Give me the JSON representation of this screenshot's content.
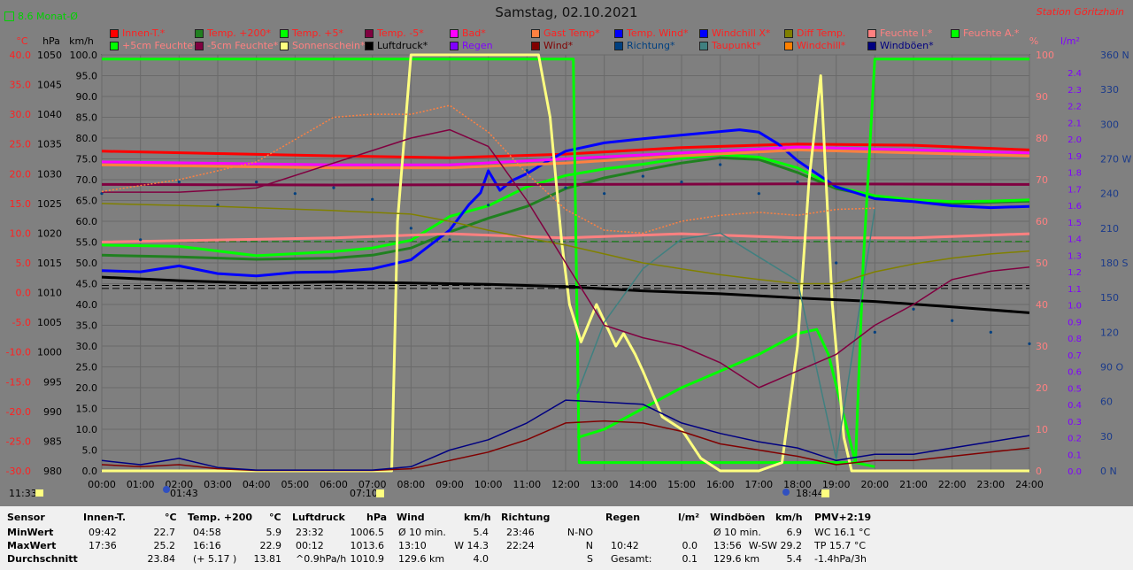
{
  "header": {
    "title": "Samstag, 02.10.2021",
    "station": "Station Göritzhain",
    "monat": "8.6 Monat-Ø"
  },
  "legend": [
    {
      "label": "Innen-T.*",
      "color": "#ff0000",
      "text": "#ff2020"
    },
    {
      "label": "Temp. +200*",
      "color": "#208020",
      "text": "#ff2020"
    },
    {
      "label": "Temp. +5*",
      "color": "#00ff00",
      "text": "#ff2020"
    },
    {
      "label": "Temp. -5*",
      "color": "#800040",
      "text": "#ff2020"
    },
    {
      "label": "Bad*",
      "color": "#ff00ff",
      "text": "#ff2020"
    },
    {
      "label": "Gast Temp*",
      "color": "#ff8040",
      "text": "#ff2020"
    },
    {
      "label": "Temp. Wind*",
      "color": "#0000ff",
      "text": "#ff2020"
    },
    {
      "label": "Windchill X*",
      "color": "#0000ff",
      "text": "#ff2020"
    },
    {
      "label": "Diff Temp.",
      "color": "#808000",
      "text": "#ff2020"
    },
    {
      "label": "Feuchte I.*",
      "color": "#ff8080",
      "text": "#ff8080"
    },
    {
      "label": "Feuchte A.*",
      "color": "#00ff00",
      "text": "#ff8080"
    },
    {
      "label": "+5cm Feuchte*",
      "color": "#00ff00",
      "text": "#ff8080"
    },
    {
      "label": "-5cm Feuchte*",
      "color": "#800040",
      "text": "#ff8080"
    },
    {
      "label": "Sonnenschein*",
      "color": "#ffff80",
      "text": "#ff8080"
    },
    {
      "label": "Luftdruck*",
      "color": "#000000",
      "text": "#000000"
    },
    {
      "label": "Regen",
      "color": "#8000ff",
      "text": "#8000ff"
    },
    {
      "label": "Wind*",
      "color": "#800000",
      "text": "#800000"
    },
    {
      "label": "Richtung*",
      "color": "#004080",
      "text": "#004080"
    },
    {
      "label": "Taupunkt*",
      "color": "#408080",
      "text": "#ff2020"
    },
    {
      "label": "Windchill*",
      "color": "#ff8000",
      "text": "#ff2020"
    },
    {
      "label": "Windböen*",
      "color": "#000080",
      "text": "#000080"
    }
  ],
  "axes": {
    "unit_temp": "°C",
    "unit_hpa": "hPa",
    "unit_kmh": "km/h",
    "unit_pct": "%",
    "unit_rain": "l/m²",
    "temp_ticks": [
      "40.0",
      "35.0",
      "30.0",
      "25.0",
      "20.0",
      "15.0",
      "10.0",
      "5.0",
      "0.0",
      "-5.0",
      "-10.0",
      "-15.0",
      "-20.0",
      "-25.0",
      "-30.0"
    ],
    "hpa_ticks": [
      "1050",
      "1045",
      "1040",
      "1035",
      "1030",
      "1025",
      "1020",
      "1015",
      "1010",
      "1005",
      "1000",
      "995",
      "990",
      "985",
      "980"
    ],
    "kmh_ticks": [
      "100.0",
      "95.0",
      "90.0",
      "85.0",
      "80.0",
      "75.0",
      "70.0",
      "65.0",
      "60.0",
      "55.0",
      "50.0",
      "45.0",
      "40.0",
      "35.0",
      "30.0",
      "25.0",
      "20.0",
      "15.0",
      "10.0",
      "5.0",
      "0.0"
    ],
    "pct_ticks": [
      "100",
      "90",
      "80",
      "70",
      "60",
      "50",
      "40",
      "30",
      "20",
      "10",
      "0"
    ],
    "rain_ticks": [
      "2.4",
      "2.3",
      "2.2",
      "2.1",
      "2.0",
      "1.9",
      "1.8",
      "1.7",
      "1.6",
      "1.5",
      "1.4",
      "1.3",
      "1.2",
      "1.1",
      "1.0",
      "0.9",
      "0.8",
      "0.7",
      "0.6",
      "0.5",
      "0.4",
      "0.3",
      "0.2",
      "0.1",
      "0.0"
    ],
    "dir_ticks": [
      "360 N",
      "330",
      "300",
      "270 W",
      "240",
      "210",
      "180 S",
      "150",
      "120",
      "90 O",
      "60",
      "30",
      "0   N"
    ],
    "time_ticks": [
      "00:00",
      "01:00",
      "02:00",
      "03:00",
      "04:00",
      "05:00",
      "06:00",
      "07:00",
      "08:00",
      "09:00",
      "10:00",
      "11:00",
      "12:00",
      "13:00",
      "14:00",
      "15:00",
      "16:00",
      "17:00",
      "18:00",
      "19:00",
      "20:00",
      "21:00",
      "22:00",
      "23:00",
      "24:00"
    ],
    "markers": {
      "moon_rise": "11:33",
      "moon_set": "01:43",
      "sunrise": "07:10",
      "sunset": "18:44"
    }
  },
  "chart_data": {
    "type": "line",
    "x_unit": "hours",
    "xlim": [
      0,
      24
    ],
    "series": [
      {
        "name": "Innen-T.*",
        "axis": "temp",
        "color": "#ff0000",
        "x": [
          0,
          3,
          6,
          9,
          12,
          15,
          18,
          21,
          24
        ],
        "y": [
          23.8,
          23.4,
          23.0,
          22.7,
          23.3,
          24.4,
          25.0,
          24.8,
          24.0
        ]
      },
      {
        "name": "Temp. +200*",
        "axis": "temp",
        "color": "#208020",
        "x": [
          0,
          2,
          4,
          6,
          7,
          8,
          9,
          10,
          11,
          12,
          13,
          14,
          15,
          16,
          17,
          18,
          19,
          20,
          21,
          22,
          23,
          24
        ],
        "y": [
          6.3,
          6.0,
          5.6,
          5.8,
          6.3,
          7.5,
          10.2,
          12.5,
          14.5,
          17.5,
          19.3,
          20.6,
          21.8,
          22.7,
          22.4,
          20.2,
          17.5,
          16.2,
          15.4,
          15.0,
          15.2,
          15.4
        ]
      },
      {
        "name": "Temp. +5*",
        "axis": "temp",
        "color": "#00ff00",
        "x": [
          0,
          2,
          3,
          4,
          6,
          7,
          8,
          9,
          10,
          11,
          12,
          13,
          14,
          15,
          16,
          17,
          18,
          19,
          20,
          21,
          22,
          23,
          24
        ],
        "y": [
          8.0,
          7.8,
          7.0,
          6.2,
          6.9,
          7.5,
          8.8,
          12.8,
          14.6,
          17.8,
          19.7,
          20.8,
          21.6,
          22.6,
          23.2,
          22.8,
          21.0,
          17.8,
          16.3,
          15.6,
          15.3,
          15.4,
          15.6
        ]
      },
      {
        "name": "Temp. Wind*",
        "axis": "temp",
        "color": "#0000ff",
        "x": [
          0,
          1,
          2,
          3,
          4,
          5,
          6,
          7,
          8,
          9,
          9.5,
          9.8,
          10,
          10.3,
          10.6,
          11,
          11.5,
          12,
          13,
          14,
          15,
          16,
          16.5,
          17,
          17.5,
          18,
          19,
          20,
          21,
          22,
          23,
          24
        ],
        "y": [
          3.7,
          3.5,
          4.5,
          3.2,
          2.8,
          3.4,
          3.5,
          4.0,
          5.5,
          10.5,
          14.8,
          16.8,
          20.5,
          17.2,
          18.8,
          20.0,
          22.0,
          23.8,
          25.2,
          25.9,
          26.5,
          27.1,
          27.4,
          27.0,
          25.0,
          22.2,
          17.8,
          15.8,
          15.3,
          14.6,
          14.3,
          14.5
        ]
      },
      {
        "name": "Bad*",
        "axis": "temp",
        "color": "#ff00ff",
        "x": [
          0,
          6,
          9,
          12,
          15,
          18,
          21,
          24
        ],
        "y": [
          22.0,
          21.5,
          21.5,
          22.5,
          23.5,
          24.5,
          24.0,
          23.5
        ]
      },
      {
        "name": "Gast Temp*",
        "axis": "temp",
        "color": "#ff8040",
        "x": [
          0,
          6,
          9,
          12,
          15,
          18,
          21,
          24
        ],
        "y": [
          21.5,
          21.0,
          21.0,
          21.8,
          23.0,
          24.0,
          23.5,
          23.0
        ]
      },
      {
        "name": "Temp. -5*",
        "axis": "temp",
        "color": "#800040",
        "x": [
          0,
          6,
          12,
          18,
          24
        ],
        "y": [
          18.2,
          18.1,
          18.2,
          18.3,
          18.2
        ]
      },
      {
        "name": "Feuchte I.*",
        "axis": "pct",
        "color": "#ff8080",
        "x": [
          0,
          6,
          9,
          12,
          15,
          18,
          21,
          24
        ],
        "y": [
          55,
          56,
          57,
          56,
          57,
          56,
          56,
          57
        ]
      },
      {
        "name": "Feuchte A.*",
        "axis": "pct",
        "color": "#00ff00",
        "x": [
          0,
          12.2,
          12.35,
          19.5,
          19.7,
          20,
          24
        ],
        "y": [
          99,
          99,
          2,
          2,
          50,
          99,
          99
        ]
      },
      {
        "name": "+5cm Feuchte*",
        "axis": "pct",
        "color": "#00ff00",
        "x": [
          12.3,
          13,
          14,
          15,
          16,
          17,
          18,
          18.5,
          18.8,
          19.5,
          20
        ],
        "y": [
          8,
          10,
          15,
          20,
          24,
          28,
          33,
          34,
          28,
          2,
          1
        ]
      },
      {
        "name": "Sonnenschein*",
        "axis": "pct",
        "color": "#ffff80",
        "x": [
          0,
          7.5,
          7.65,
          8,
          11.3,
          11.6,
          11.9,
          12.1,
          12.4,
          12.8,
          13,
          13.3,
          13.5,
          13.8,
          14,
          14.5,
          15,
          15.5,
          16,
          17,
          17.6,
          18,
          18.3,
          18.6,
          18.9,
          19.2,
          19.4,
          24
        ],
        "y": [
          0,
          0,
          60,
          100,
          100,
          85,
          55,
          40,
          31,
          40,
          36,
          30,
          33,
          28,
          24,
          13,
          10,
          3,
          0,
          0,
          2,
          30,
          70,
          95,
          40,
          8,
          0,
          0
        ]
      },
      {
        "name": "Luftdruck*",
        "axis": "hpa",
        "color": "#000000",
        "x": [
          0,
          2,
          4,
          6,
          8,
          10,
          12,
          14,
          16,
          18,
          20,
          22,
          24
        ],
        "y": [
          1012.6,
          1012.0,
          1011.6,
          1011.8,
          1011.6,
          1011.4,
          1011.0,
          1010.3,
          1009.8,
          1009.1,
          1008.5,
          1007.6,
          1006.6
        ]
      },
      {
        "name": "Wind*",
        "axis": "kmh",
        "color": "#800000",
        "x": [
          0,
          1,
          2,
          3,
          4,
          5,
          6,
          7,
          8,
          9,
          10,
          11,
          12,
          13,
          14,
          15,
          16,
          17,
          18,
          19,
          20,
          21,
          22,
          23,
          24
        ],
        "y": [
          1.5,
          1.0,
          1.5,
          0.5,
          0.1,
          0.1,
          0.1,
          0.1,
          0.5,
          2.5,
          4.5,
          7.5,
          11.5,
          12.0,
          11.5,
          9.5,
          6.5,
          5.0,
          3.5,
          1.5,
          2.5,
          2.5,
          3.5,
          4.5,
          5.5
        ]
      },
      {
        "name": "Windböen*",
        "axis": "kmh",
        "color": "#000080",
        "x": [
          0,
          1,
          2,
          3,
          4,
          5,
          6,
          7,
          8,
          9,
          10,
          11,
          12,
          13,
          14,
          15,
          16,
          17,
          18,
          19,
          20,
          21,
          22,
          23,
          24
        ],
        "y": [
          2.5,
          1.5,
          3.0,
          0.8,
          0.2,
          0.2,
          0.2,
          0.2,
          1.0,
          5.0,
          7.5,
          11.5,
          17.0,
          16.5,
          16.0,
          11.5,
          9.0,
          7.0,
          5.5,
          2.5,
          4.0,
          4.0,
          5.5,
          7.0,
          8.5
        ]
      },
      {
        "name": "Richtung*",
        "axis": "dir",
        "color": "#004080",
        "type": "scatter",
        "x": [
          0,
          1,
          2,
          3,
          4,
          5,
          6,
          7,
          8,
          9,
          10,
          11,
          12,
          13,
          14,
          15,
          16,
          17,
          18,
          19,
          20,
          21,
          22,
          23,
          24
        ],
        "y": [
          240,
          200,
          250,
          230,
          250,
          240,
          245,
          235,
          210,
          200,
          230,
          260,
          245,
          240,
          255,
          250,
          265,
          240,
          250,
          180,
          120,
          140,
          130,
          120,
          110
        ]
      },
      {
        "name": "Taupunkt*",
        "axis": "temp",
        "color": "#408080",
        "x": [
          12.3,
          13,
          14,
          15,
          16,
          17,
          18,
          19,
          20
        ],
        "y": [
          -17,
          -5,
          4,
          9,
          10,
          6,
          2,
          -28,
          14
        ]
      },
      {
        "name": "Diff Temp.",
        "axis": "temp",
        "color": "#808000",
        "x": [
          0,
          3,
          6,
          8,
          9,
          10,
          11,
          12,
          13,
          14,
          15,
          16,
          17,
          18,
          19,
          20,
          21,
          22,
          23,
          24
        ],
        "y": [
          15,
          14.5,
          13.8,
          13.2,
          12,
          10.5,
          9.2,
          8,
          6.5,
          5,
          4,
          3,
          2.2,
          1.5,
          1.5,
          3.5,
          4.8,
          5.8,
          6.5,
          7
        ]
      },
      {
        "name": "-5cm Feuchte*",
        "axis": "pct",
        "color": "#800040",
        "x": [
          0,
          2,
          4,
          6,
          8,
          9,
          10,
          11,
          12,
          13,
          14,
          15,
          16,
          17,
          18,
          19,
          20,
          21,
          22,
          23,
          24
        ],
        "y": [
          67,
          67,
          68,
          74,
          80,
          82,
          78,
          65,
          50,
          35,
          32,
          30,
          26,
          20,
          24,
          28,
          35,
          40,
          46,
          48,
          49
        ]
      },
      {
        "name": "Windchill*",
        "axis": "temp",
        "color": "#ff8040",
        "dashed": true,
        "x": [
          0,
          2,
          4,
          6,
          7,
          8,
          9,
          10,
          11,
          12,
          13,
          14,
          15,
          16,
          17,
          18,
          19,
          20
        ],
        "y": [
          17,
          19,
          22,
          29.5,
          30,
          30,
          31.5,
          27,
          20,
          14,
          10.5,
          10,
          12,
          13,
          13.5,
          13,
          14,
          14.2
        ]
      }
    ],
    "hlines": [
      {
        "axis": "temp",
        "y": 8.6,
        "color": "#008000",
        "dashed": true
      },
      {
        "axis": "hpa",
        "y": 1010.7,
        "color": "#000000",
        "dashed": true
      },
      {
        "axis": "hpa",
        "y": 1011.2,
        "color": "#000000",
        "dashed": true
      }
    ]
  },
  "table": {
    "headers": {
      "sensor": "Sensor",
      "innen": "Innen-T.",
      "innen_u": "°C",
      "temp": "Temp. +200",
      "temp_u": "°C",
      "luft": "Luftdruck",
      "luft_u": "hPa",
      "wind": "Wind",
      "wind_u": "km/h",
      "richtung": "Richtung",
      "regen": "Regen",
      "regen_u": "l/m²",
      "boeen": "Windböen",
      "boeen_u": "km/h",
      "pmv": "PMV+2:19"
    },
    "rows": [
      {
        "label": "MinWert",
        "innen_t": "09:42",
        "innen_v": "22.7",
        "temp_t": "04:58",
        "temp_v": "5.9",
        "luft_t": "23:32",
        "luft_v": "1006.5",
        "wind_t": "Ø 10 min.",
        "wind_v": "5.4",
        "richt_t": "23:46",
        "richt_v": "N-NO",
        "regen_t": "",
        "regen_v": "",
        "boeen_t": "Ø 10 min.",
        "boeen_v": "6.9",
        "pmv": "WC 16.1 °C"
      },
      {
        "label": "MaxWert",
        "innen_t": "17:36",
        "innen_v": "25.2",
        "temp_t": "16:16",
        "temp_v": "22.9",
        "luft_t": "00:12",
        "luft_v": "1013.6",
        "wind_t": "13:10",
        "wind_v": "W 14.3",
        "richt_t": "22:24",
        "richt_v": "N",
        "regen_t": "10:42",
        "regen_v": "0.0",
        "boeen_t": "13:56",
        "boeen_v": "W-SW 29.2",
        "pmv": "TP 15.7 °C"
      },
      {
        "label": "Durchschnitt",
        "innen_t": "",
        "innen_v": "23.84",
        "temp_t": "(+ 5.17 )",
        "temp_v": "13.81",
        "luft_t": "^0.9hPa/h",
        "luft_v": "1010.9",
        "wind_t": "129.6 km",
        "wind_v": "4.0",
        "richt_t": "",
        "richt_v": "S",
        "regen_t": "Gesamt:",
        "regen_v": "0.1",
        "boeen_t": "129.6 km",
        "boeen_v": "5.4",
        "pmv": "-1.4hPa/3h"
      }
    ]
  }
}
